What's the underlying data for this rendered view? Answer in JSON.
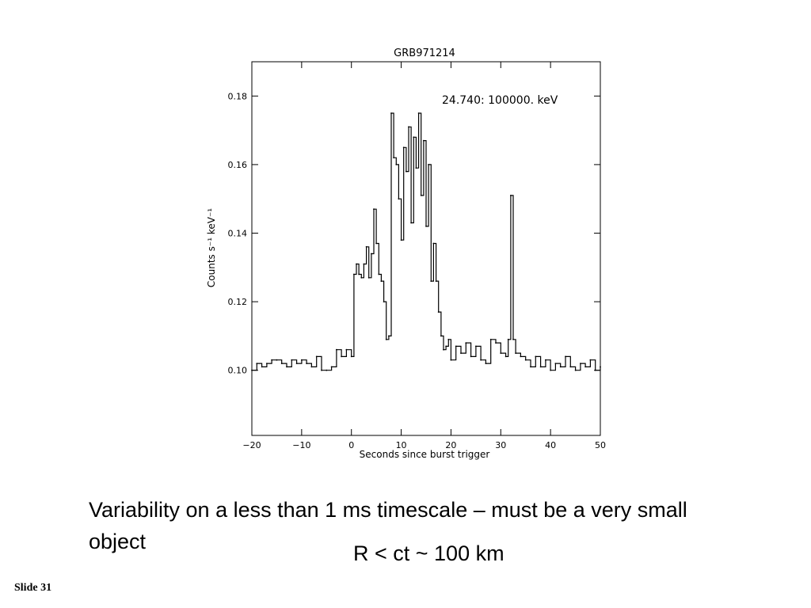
{
  "slide": {
    "caption": "Variability on a less than 1 ms timescale – must be a very small object",
    "formula": "R < ct ~ 100 km",
    "slide_number": "Slide 31"
  },
  "chart_data": {
    "type": "line",
    "title": "GRB971214",
    "annotation": "24.740: 100000. keV",
    "xlabel": "Seconds since burst trigger",
    "ylabel": "Counts s⁻¹ keV⁻¹",
    "xlim": [
      -20,
      50
    ],
    "ylim": [
      0.081,
      0.19
    ],
    "xticks": [
      -20,
      -10,
      0,
      10,
      20,
      30,
      40,
      50
    ],
    "xtick_labels": [
      "−20",
      "−10",
      "0",
      "10",
      "20",
      "30",
      "40",
      "50"
    ],
    "yticks": [
      0.1,
      0.12,
      0.14,
      0.16,
      0.18
    ],
    "ytick_labels": [
      "0.10",
      "0.12",
      "0.14",
      "0.16",
      "0.18"
    ],
    "grid": false,
    "series": [
      {
        "x": [
          -20,
          -19,
          -18,
          -17,
          -16,
          -15,
          -14,
          -13,
          -12,
          -11,
          -10,
          -9,
          -8,
          -7,
          -6,
          -5,
          -4,
          -3,
          -2,
          -1,
          0,
          0.5,
          1,
          1.5,
          2,
          2.5,
          3,
          3.5,
          4,
          4.5,
          5,
          5.5,
          6,
          6.5,
          7,
          7.5,
          8,
          8.5,
          9,
          9.5,
          10,
          10.5,
          11,
          11.5,
          12,
          12.5,
          13,
          13.5,
          14,
          14.5,
          15,
          15.5,
          16,
          16.5,
          17,
          17.5,
          18,
          18.5,
          19,
          19.5,
          20,
          21,
          22,
          23,
          24,
          25,
          26,
          27,
          28,
          29,
          30,
          31,
          31.5,
          32,
          32.5,
          33,
          34,
          35,
          36,
          37,
          38,
          39,
          40,
          41,
          42,
          43,
          44,
          45,
          46,
          47,
          48,
          49,
          50
        ],
        "y": [
          0.1,
          0.102,
          0.101,
          0.102,
          0.103,
          0.103,
          0.102,
          0.101,
          0.103,
          0.102,
          0.103,
          0.102,
          0.101,
          0.104,
          0.1,
          0.1,
          0.101,
          0.106,
          0.104,
          0.106,
          0.104,
          0.128,
          0.131,
          0.128,
          0.127,
          0.131,
          0.136,
          0.127,
          0.134,
          0.147,
          0.137,
          0.128,
          0.126,
          0.12,
          0.109,
          0.11,
          0.175,
          0.162,
          0.16,
          0.15,
          0.138,
          0.165,
          0.158,
          0.171,
          0.143,
          0.168,
          0.159,
          0.175,
          0.151,
          0.167,
          0.142,
          0.16,
          0.126,
          0.137,
          0.126,
          0.117,
          0.11,
          0.106,
          0.107,
          0.109,
          0.103,
          0.107,
          0.105,
          0.108,
          0.104,
          0.107,
          0.103,
          0.102,
          0.109,
          0.108,
          0.105,
          0.104,
          0.109,
          0.151,
          0.109,
          0.105,
          0.104,
          0.103,
          0.101,
          0.104,
          0.101,
          0.103,
          0.1,
          0.102,
          0.101,
          0.104,
          0.101,
          0.1,
          0.102,
          0.101,
          0.103,
          0.1,
          0.101
        ]
      }
    ]
  }
}
